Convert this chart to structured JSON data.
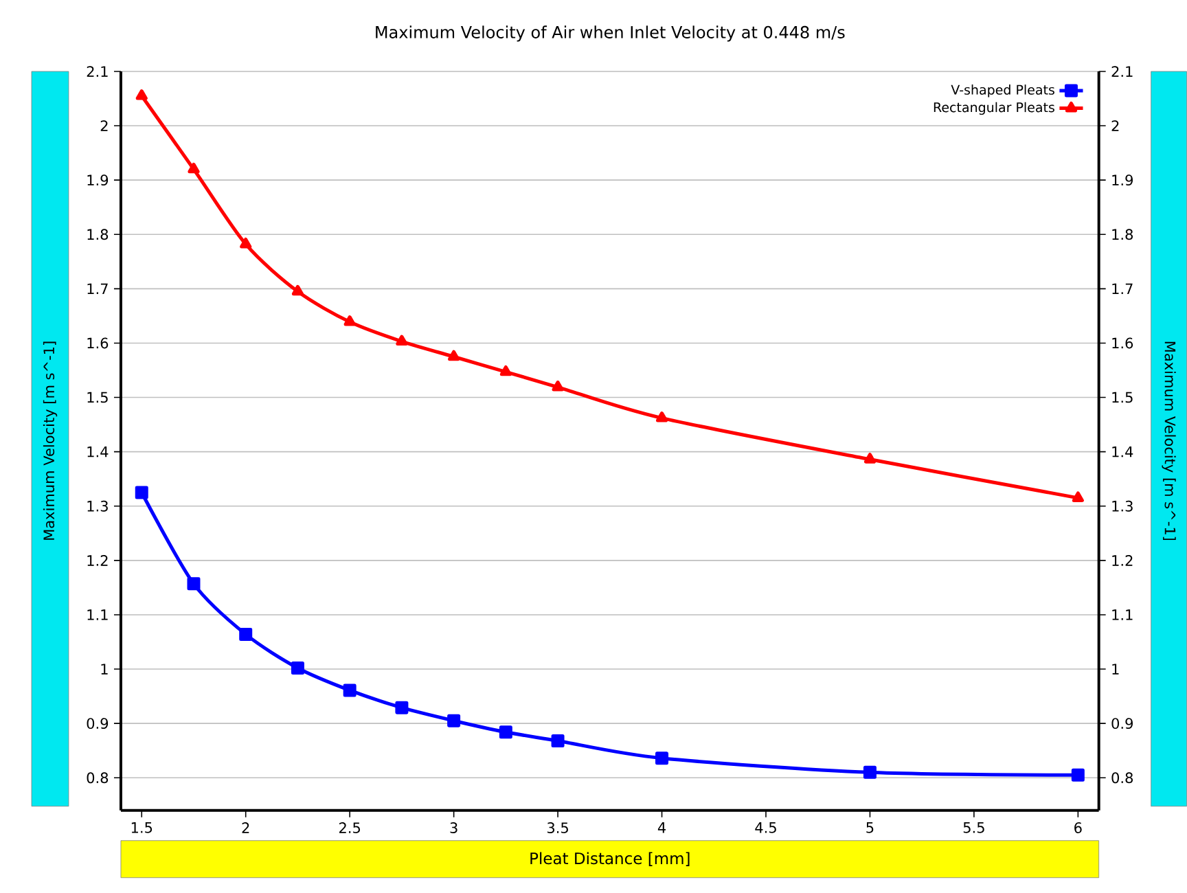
{
  "chart_data": {
    "type": "line",
    "title": "Maximum Velocity of Air when Inlet Velocity at 0.448 m/s",
    "xlabel": "Pleat Distance  [mm]",
    "ylabel": "Maximum Velocity  [m s^-1]",
    "y2label": "Maximum Velocity  [m s^-1]",
    "x": [
      1.5,
      1.75,
      2,
      2.25,
      2.5,
      2.75,
      3,
      3.25,
      3.5,
      4,
      5,
      6
    ],
    "series": [
      {
        "name": "V-shaped Pleats",
        "color": "#0000ff",
        "marker": "square",
        "values": [
          1.325,
          1.157,
          1.064,
          1.002,
          0.961,
          0.929,
          0.905,
          0.884,
          0.868,
          0.836,
          0.81,
          0.805
        ]
      },
      {
        "name": "Rectangular Pleats",
        "color": "#ff0000",
        "marker": "triangle",
        "values": [
          2.055,
          1.92,
          1.782,
          1.695,
          1.639,
          1.603,
          1.575,
          1.547,
          1.519,
          1.462,
          1.386,
          1.315
        ]
      }
    ],
    "xlim": [
      1.4,
      6.1
    ],
    "xticks": [
      1.5,
      2,
      2.5,
      3,
      3.5,
      4,
      4.5,
      5,
      5.5,
      6
    ],
    "ylim": [
      0.74,
      2.1
    ],
    "yticks": [
      0.8,
      0.9,
      1,
      1.1,
      1.2,
      1.3,
      1.4,
      1.5,
      1.6,
      1.7,
      1.8,
      1.9,
      2,
      2.1
    ],
    "y2lim": [
      0.74,
      2.1
    ],
    "y2ticks": [
      0.8,
      0.9,
      1,
      1.1,
      1.2,
      1.3,
      1.4,
      1.5,
      1.6,
      1.7,
      1.8,
      1.9,
      2,
      2.1
    ],
    "grid": "y",
    "legend": "top right",
    "line_style": "solid"
  }
}
